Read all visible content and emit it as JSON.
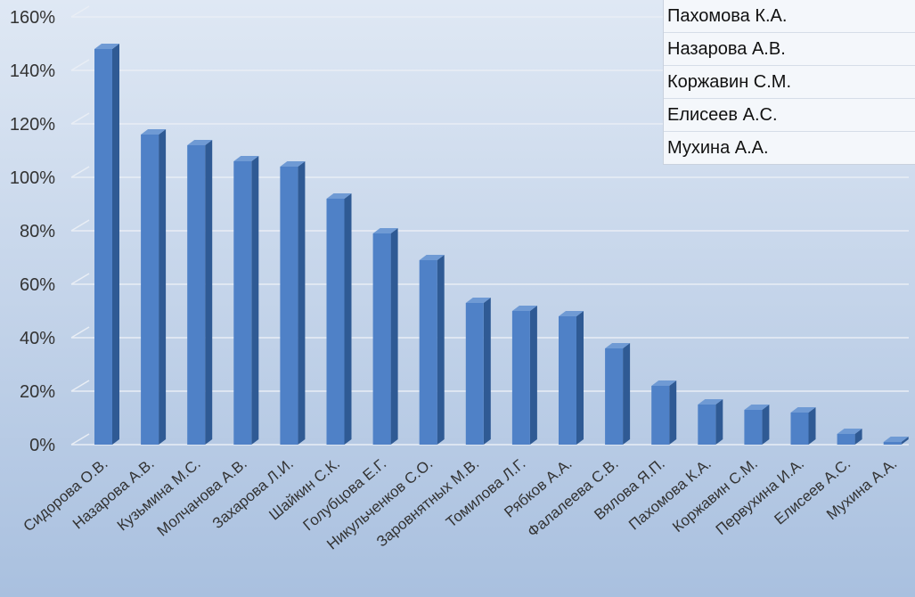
{
  "chart_data": {
    "type": "bar",
    "title": "",
    "xlabel": "",
    "ylabel": "",
    "ylim": [
      0,
      160
    ],
    "y_ticks": [
      "0%",
      "20%",
      "40%",
      "60%",
      "80%",
      "100%",
      "120%",
      "140%",
      "160%"
    ],
    "y_tick_values": [
      0,
      20,
      40,
      60,
      80,
      100,
      120,
      140,
      160
    ],
    "grid": true,
    "bar_style": "3d",
    "colors": {
      "bar": "#4f81c7",
      "bar_top": "#6f9ad4",
      "bar_side": "#2f5a94",
      "background_top": "#dfe8f4",
      "background_bottom": "#a9c0df",
      "grid": "#e9eef5"
    },
    "categories": [
      "Сидорова О.В.",
      "Назарова А.В.",
      "Кузьмина М.С.",
      "Молчанова А.В.",
      "Захарова Л.И.",
      "Шайкин С.К.",
      "Голубцова Е.Г.",
      "Никульченков С.О.",
      "Заровнятных М.В.",
      "Томилова Л.Г.",
      "Рябков А.А.",
      "Фалалеева С.В.",
      "Вялова Я.П.",
      "Пахомова К.А.",
      "Коржавин С.М.",
      "Первухина И.А.",
      "Елисеев А.С.",
      "Мухина А.А."
    ],
    "values": [
      148,
      116,
      112,
      106,
      104,
      92,
      79,
      69,
      53,
      50,
      48,
      36,
      22,
      15,
      13,
      12,
      4,
      1
    ]
  },
  "legend": {
    "placement": "top-right",
    "items": [
      "Пахомова К.А.",
      "Назарова А.В.",
      "Коржавин С.М.",
      "Елисеев А.С.",
      "Мухина А.А."
    ]
  }
}
